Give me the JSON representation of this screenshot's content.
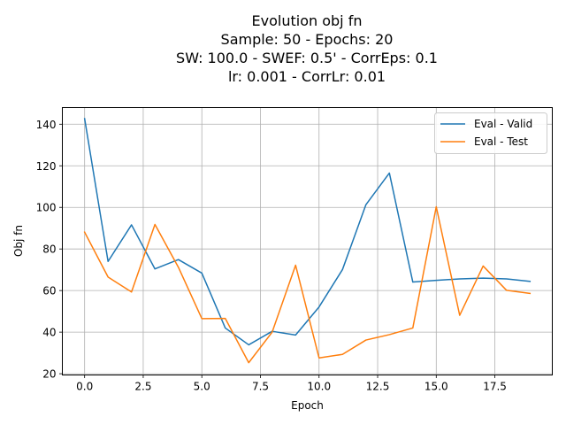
{
  "chart_data": {
    "type": "line",
    "title_lines": [
      "Evolution obj fn",
      "Sample: 50 - Epochs: 20",
      "SW: 100.0 - SWEF: 0.5' - CorrEps: 0.1",
      "lr: 0.001 - CorrLr: 0.01"
    ],
    "xlabel": "Epoch",
    "ylabel": "Obj fn",
    "xlim": [
      -0.95,
      19.95
    ],
    "ylim": [
      19.4,
      148.0
    ],
    "xticks": [
      0.0,
      2.5,
      5.0,
      7.5,
      10.0,
      12.5,
      15.0,
      17.5
    ],
    "xtick_labels": [
      "0.0",
      "2.5",
      "5.0",
      "7.5",
      "10.0",
      "12.5",
      "15.0",
      "17.5"
    ],
    "yticks": [
      20,
      40,
      60,
      80,
      100,
      120,
      140
    ],
    "ytick_labels": [
      "20",
      "40",
      "60",
      "80",
      "100",
      "120",
      "140"
    ],
    "grid": true,
    "legend_position": "top-right",
    "x": [
      0,
      1,
      2,
      3,
      4,
      5,
      6,
      7,
      8,
      9,
      10,
      11,
      12,
      13,
      14,
      15,
      16,
      17,
      18,
      19
    ],
    "series": [
      {
        "name": "Eval - Valid",
        "color": "#1f77b4",
        "values": [
          142.7,
          74.0,
          91.6,
          70.4,
          74.9,
          68.4,
          42.0,
          33.9,
          40.4,
          38.6,
          52.1,
          70.1,
          101.3,
          116.5,
          64.1,
          64.9,
          65.6,
          66.0,
          65.6,
          64.4
        ]
      },
      {
        "name": "Eval - Test",
        "color": "#ff7f0e",
        "values": [
          88.1,
          66.5,
          59.3,
          91.8,
          71.2,
          46.5,
          46.6,
          25.3,
          40.0,
          72.2,
          27.6,
          29.3,
          36.2,
          38.8,
          42.0,
          100.3,
          48.1,
          71.8,
          60.1,
          58.6
        ]
      }
    ]
  }
}
